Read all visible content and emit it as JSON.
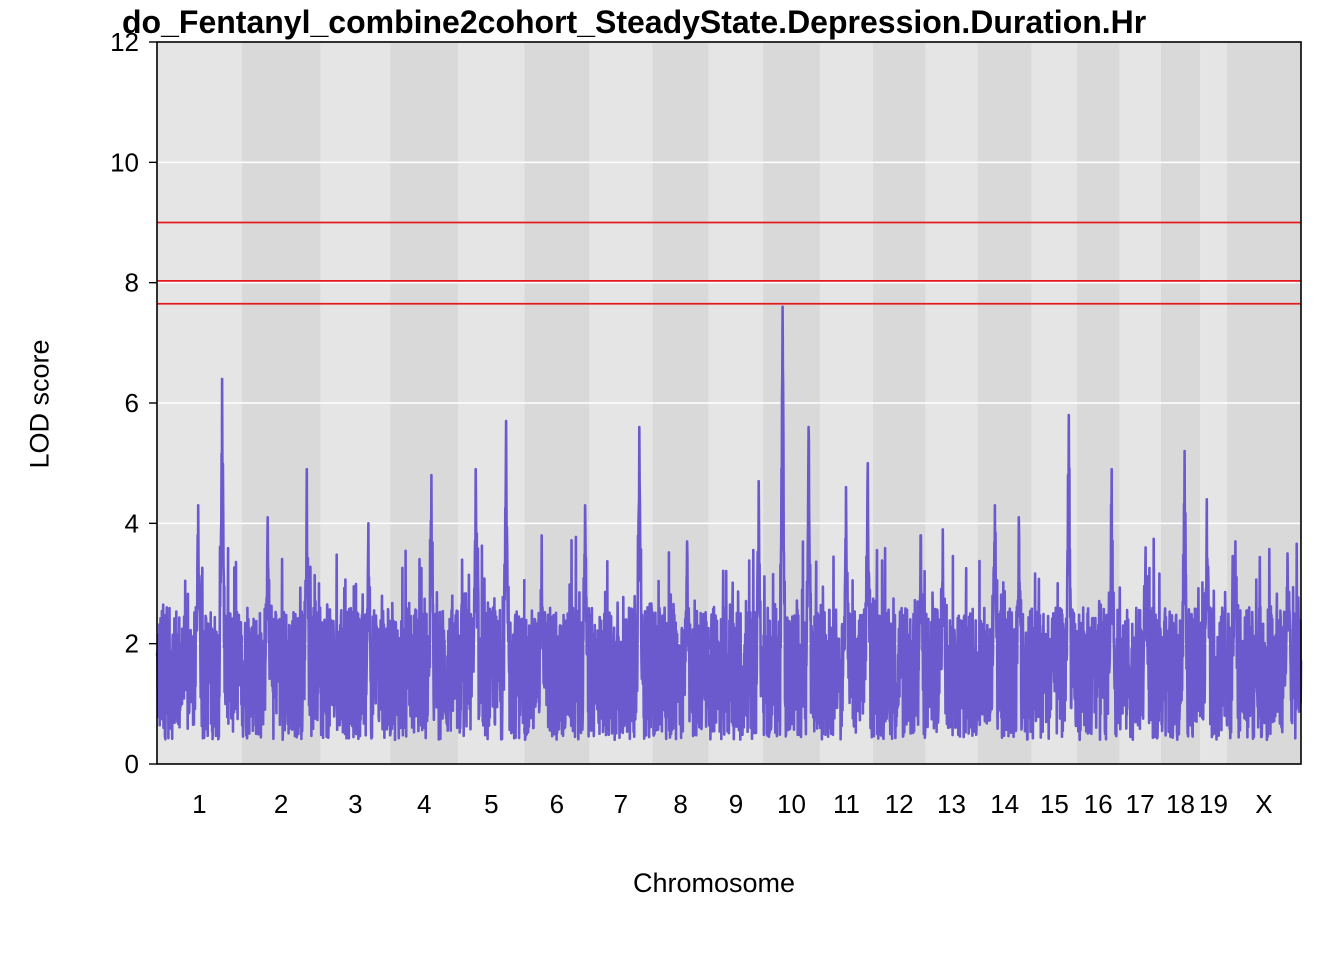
{
  "chart_data": {
    "type": "line",
    "title": "do_Fentanyl_combine2cohort_SteadyState.Depression.Duration.Hr",
    "xlabel": "Chromosome",
    "ylabel": "LOD score",
    "ylim": [
      0,
      12
    ],
    "yticks": [
      0,
      2,
      4,
      6,
      8,
      10,
      12
    ],
    "grid": true,
    "chromosomes": [
      "1",
      "2",
      "3",
      "4",
      "5",
      "6",
      "7",
      "8",
      "9",
      "10",
      "11",
      "12",
      "13",
      "14",
      "15",
      "16",
      "17",
      "18",
      "19",
      "X"
    ],
    "chromosome_lengths_mb": [
      195,
      182,
      160,
      157,
      152,
      150,
      145,
      130,
      125,
      131,
      122,
      121,
      120,
      125,
      104,
      98,
      95,
      91,
      61,
      171
    ],
    "thresholds": [
      9.0,
      8.03,
      7.65
    ],
    "series": [
      {
        "color": "#6a5acd",
        "peaks": [
          {
            "chr": "1",
            "pos_mb": 150,
            "lod": 6.4
          },
          {
            "chr": "1",
            "pos_mb": 95,
            "lod": 4.3
          },
          {
            "chr": "2",
            "pos_mb": 60,
            "lod": 4.1
          },
          {
            "chr": "2",
            "pos_mb": 150,
            "lod": 4.9
          },
          {
            "chr": "3",
            "pos_mb": 110,
            "lod": 4.0
          },
          {
            "chr": "4",
            "pos_mb": 95,
            "lod": 4.8
          },
          {
            "chr": "5",
            "pos_mb": 40,
            "lod": 4.9
          },
          {
            "chr": "5",
            "pos_mb": 110,
            "lod": 5.7
          },
          {
            "chr": "6",
            "pos_mb": 40,
            "lod": 3.8
          },
          {
            "chr": "6",
            "pos_mb": 140,
            "lod": 4.3
          },
          {
            "chr": "7",
            "pos_mb": 115,
            "lod": 5.6
          },
          {
            "chr": "8",
            "pos_mb": 80,
            "lod": 3.7
          },
          {
            "chr": "9",
            "pos_mb": 115,
            "lod": 4.7
          },
          {
            "chr": "10",
            "pos_mb": 45,
            "lod": 7.6
          },
          {
            "chr": "10",
            "pos_mb": 105,
            "lod": 5.6
          },
          {
            "chr": "11",
            "pos_mb": 60,
            "lod": 4.6
          },
          {
            "chr": "11",
            "pos_mb": 110,
            "lod": 5.0
          },
          {
            "chr": "12",
            "pos_mb": 110,
            "lod": 3.8
          },
          {
            "chr": "13",
            "pos_mb": 40,
            "lod": 3.9
          },
          {
            "chr": "14",
            "pos_mb": 40,
            "lod": 4.3
          },
          {
            "chr": "14",
            "pos_mb": 95,
            "lod": 4.1
          },
          {
            "chr": "15",
            "pos_mb": 85,
            "lod": 5.8
          },
          {
            "chr": "16",
            "pos_mb": 80,
            "lod": 4.9
          },
          {
            "chr": "17",
            "pos_mb": 60,
            "lod": 3.6
          },
          {
            "chr": "18",
            "pos_mb": 55,
            "lod": 5.2
          },
          {
            "chr": "19",
            "pos_mb": 15,
            "lod": 4.4
          },
          {
            "chr": "X",
            "pos_mb": 20,
            "lod": 3.7
          },
          {
            "chr": "X",
            "pos_mb": 140,
            "lod": 3.5
          }
        ]
      }
    ]
  }
}
